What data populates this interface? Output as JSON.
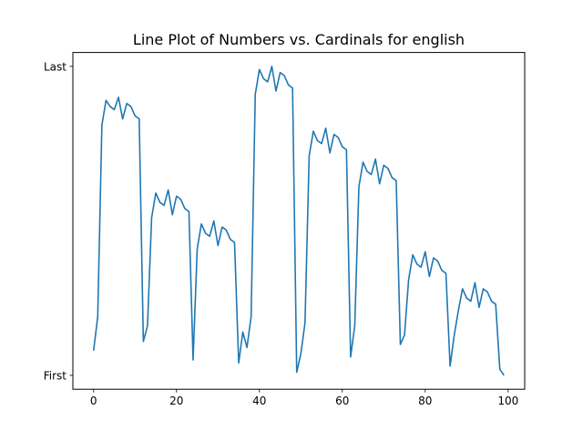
{
  "chart_data": {
    "type": "line",
    "title": "Line Plot of Numbers vs. Cardinals for english",
    "xlabel": "",
    "ylabel": "",
    "xlim": [
      -5,
      104
    ],
    "ylim": [
      -0.045,
      1.045
    ],
    "x_ticks": [
      0,
      20,
      40,
      60,
      80,
      100
    ],
    "x_tick_labels": [
      "0",
      "20",
      "40",
      "60",
      "80",
      "100"
    ],
    "y_ticks": [
      0,
      1
    ],
    "y_tick_labels": [
      "First",
      "Last"
    ],
    "grid": false,
    "color": "#1f77b4",
    "series": [
      {
        "x": [
          0,
          1,
          2,
          3,
          4,
          5,
          6,
          7,
          8,
          9,
          10,
          11,
          12,
          13,
          14,
          15,
          16,
          17,
          18,
          19,
          20,
          21,
          22,
          23,
          24,
          25,
          26,
          27,
          28,
          29,
          30,
          31,
          32,
          33,
          34,
          35,
          36,
          37,
          38,
          39,
          40,
          41,
          42,
          43,
          44,
          45,
          46,
          47,
          48,
          49,
          50,
          51,
          52,
          53,
          54,
          55,
          56,
          57,
          58,
          59,
          60,
          61,
          62,
          63,
          64,
          65,
          66,
          67,
          68,
          69,
          70,
          71,
          72,
          73,
          74,
          75,
          76,
          77,
          78,
          79,
          80,
          81,
          82,
          83,
          84,
          85,
          86,
          87,
          88,
          89,
          90,
          91,
          92,
          93,
          94,
          95,
          96,
          97,
          98,
          99
        ],
        "y": [
          0.08,
          0.19,
          0.81,
          0.89,
          0.87,
          0.86,
          0.9,
          0.83,
          0.88,
          0.87,
          0.84,
          0.83,
          0.11,
          0.16,
          0.51,
          0.59,
          0.56,
          0.55,
          0.6,
          0.52,
          0.58,
          0.57,
          0.54,
          0.53,
          0.05,
          0.41,
          0.49,
          0.46,
          0.45,
          0.5,
          0.42,
          0.48,
          0.47,
          0.44,
          0.43,
          0.04,
          0.14,
          0.09,
          0.19,
          0.91,
          0.99,
          0.96,
          0.95,
          1.0,
          0.92,
          0.98,
          0.97,
          0.94,
          0.93,
          0.01,
          0.07,
          0.17,
          0.71,
          0.79,
          0.76,
          0.75,
          0.8,
          0.72,
          0.78,
          0.77,
          0.74,
          0.73,
          0.06,
          0.16,
          0.61,
          0.69,
          0.66,
          0.65,
          0.7,
          0.62,
          0.68,
          0.67,
          0.64,
          0.63,
          0.1,
          0.13,
          0.31,
          0.39,
          0.36,
          0.35,
          0.4,
          0.32,
          0.38,
          0.37,
          0.34,
          0.33,
          0.03,
          0.13,
          0.21,
          0.28,
          0.25,
          0.24,
          0.3,
          0.22,
          0.28,
          0.27,
          0.24,
          0.23,
          0.02,
          0.0
        ]
      }
    ]
  }
}
